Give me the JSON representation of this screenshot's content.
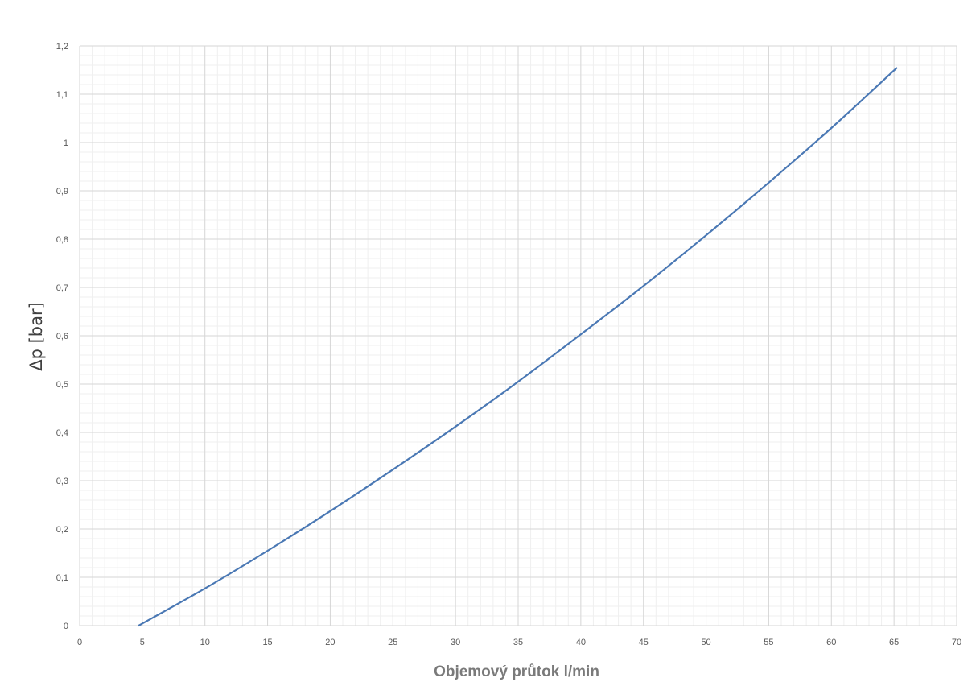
{
  "chart_data": {
    "type": "line",
    "title": "",
    "xlabel": "Objemový průtok  l/min",
    "ylabel": "Δp [bar]",
    "xlim": [
      0,
      70
    ],
    "ylim": [
      0,
      1.2
    ],
    "x_ticks": [
      0,
      5,
      10,
      15,
      20,
      25,
      30,
      35,
      40,
      45,
      50,
      55,
      60,
      65,
      70
    ],
    "y_ticks": [
      0,
      0.1,
      0.2,
      0.3,
      0.4,
      0.5,
      0.6,
      0.7,
      0.8,
      0.9,
      1.0,
      1.1,
      1.2
    ],
    "x_tick_labels": [
      "0",
      "5",
      "10",
      "15",
      "20",
      "25",
      "30",
      "35",
      "40",
      "45",
      "50",
      "55",
      "60",
      "65",
      "70"
    ],
    "y_tick_labels": [
      "0",
      "0,1",
      "0,2",
      "0,3",
      "0,4",
      "0,5",
      "0,6",
      "0,7",
      "0,8",
      "0,9",
      "1",
      "1,1",
      "1,2"
    ],
    "grid": true,
    "minor_grid": true,
    "legend": "none",
    "series": [
      {
        "color": "#4a78b4",
        "x": [
          4.7,
          10,
          15,
          20,
          25,
          30,
          35,
          40,
          45,
          50,
          55,
          60,
          65.2
        ],
        "y": [
          0.0,
          0.077,
          0.155,
          0.237,
          0.323,
          0.412,
          0.505,
          0.603,
          0.703,
          0.808,
          0.917,
          1.03,
          1.154
        ]
      }
    ]
  }
}
